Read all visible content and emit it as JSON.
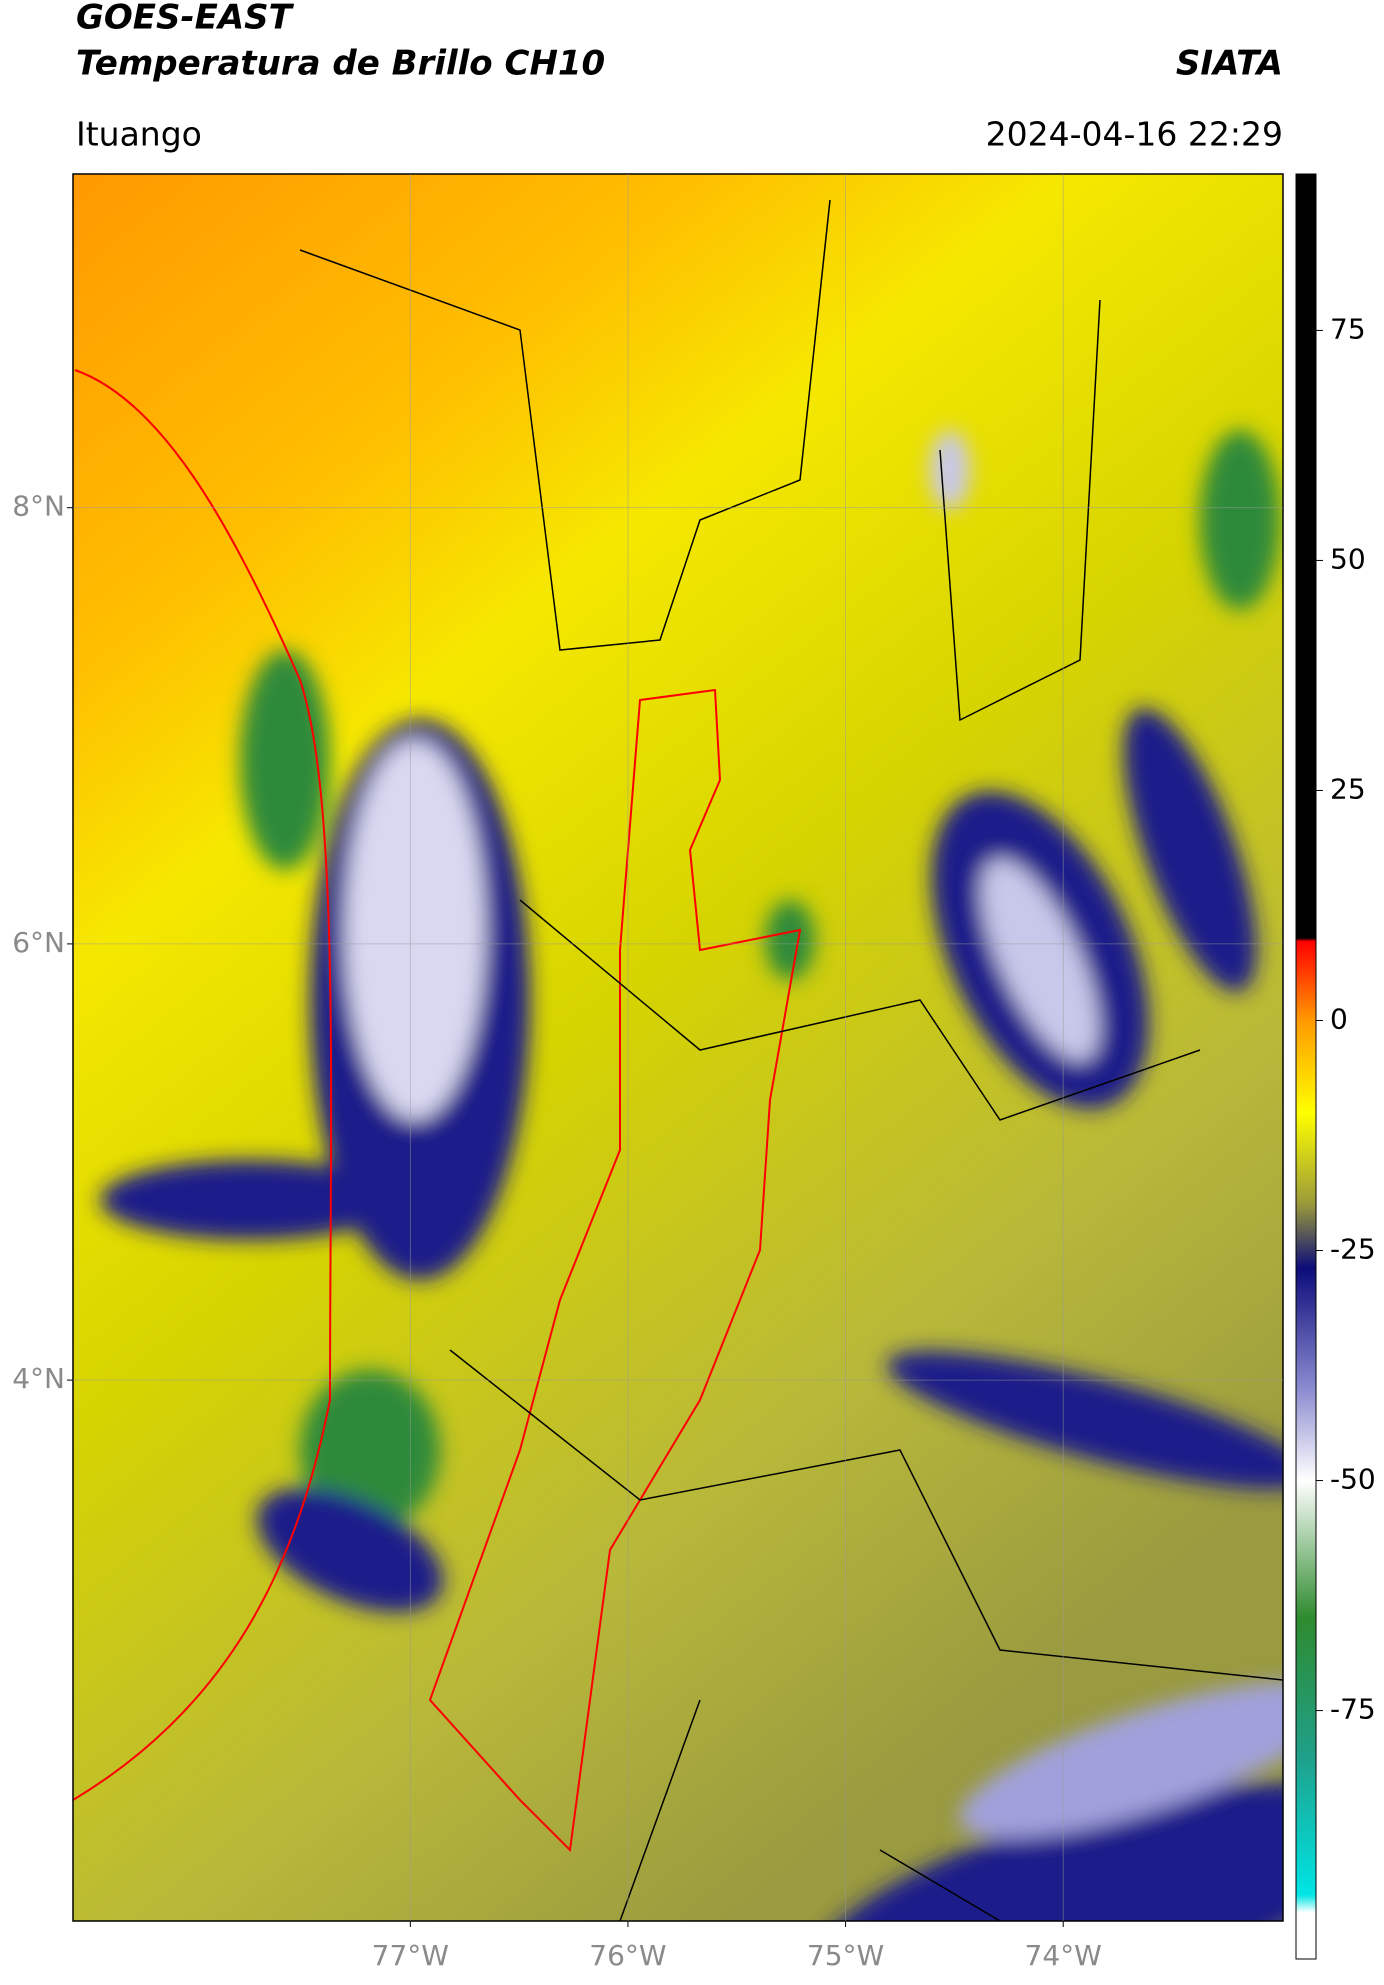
{
  "header": {
    "title": "GOES-EAST",
    "subtitle": "Temperatura de Brillo CH10",
    "source": "SIATA",
    "location": "Ituango",
    "datetime": "2024-04-16 22:29"
  },
  "map": {
    "xlim": [
      -78.55,
      -72.99
    ],
    "ylim": [
      1.52,
      9.53
    ],
    "xticks": [
      {
        "value": -77,
        "label": "77°W"
      },
      {
        "value": -76,
        "label": "76°W"
      },
      {
        "value": -75,
        "label": "75°W"
      },
      {
        "value": -74,
        "label": "74°W"
      }
    ],
    "yticks": [
      {
        "value": 8,
        "label": "8°N"
      },
      {
        "value": 6,
        "label": "6°N"
      },
      {
        "value": 4,
        "label": "4°N"
      }
    ],
    "grid": true
  },
  "colorbar": {
    "lim": [
      -102,
      92
    ],
    "ticks": [
      75,
      50,
      25,
      0,
      -25,
      -50,
      -75
    ]
  }
}
